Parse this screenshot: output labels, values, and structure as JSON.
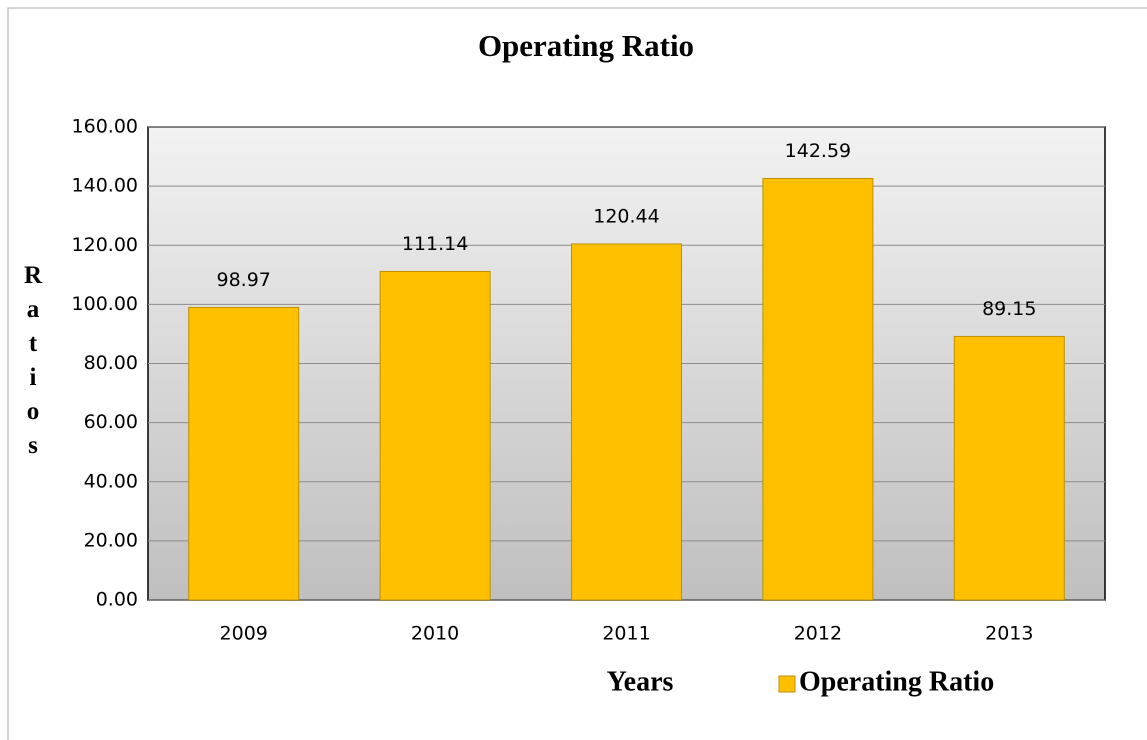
{
  "chart_data": {
    "type": "bar",
    "title": "Operating Ratio",
    "x_label": "Years",
    "y_label": "Ratios",
    "categories": [
      "2009",
      "2010",
      "2011",
      "2012",
      "2013"
    ],
    "series": [
      {
        "name": "Operating Ratio",
        "color": "#ffc000",
        "values": [
          98.97,
          111.14,
          120.44,
          142.59,
          89.15
        ]
      }
    ],
    "ylim": [
      0,
      160
    ],
    "yticks": [
      {
        "value": 0,
        "label": "0.00"
      },
      {
        "value": 20,
        "label": "20.00"
      },
      {
        "value": 40,
        "label": "40.00"
      },
      {
        "value": 60,
        "label": "60.00"
      },
      {
        "value": 80,
        "label": "80.00"
      },
      {
        "value": 100,
        "label": "100.00"
      },
      {
        "value": 120,
        "label": "120.00"
      },
      {
        "value": 140,
        "label": "140.00"
      },
      {
        "value": 160,
        "label": "160.00"
      }
    ],
    "grid": true,
    "legend": "bottom"
  }
}
